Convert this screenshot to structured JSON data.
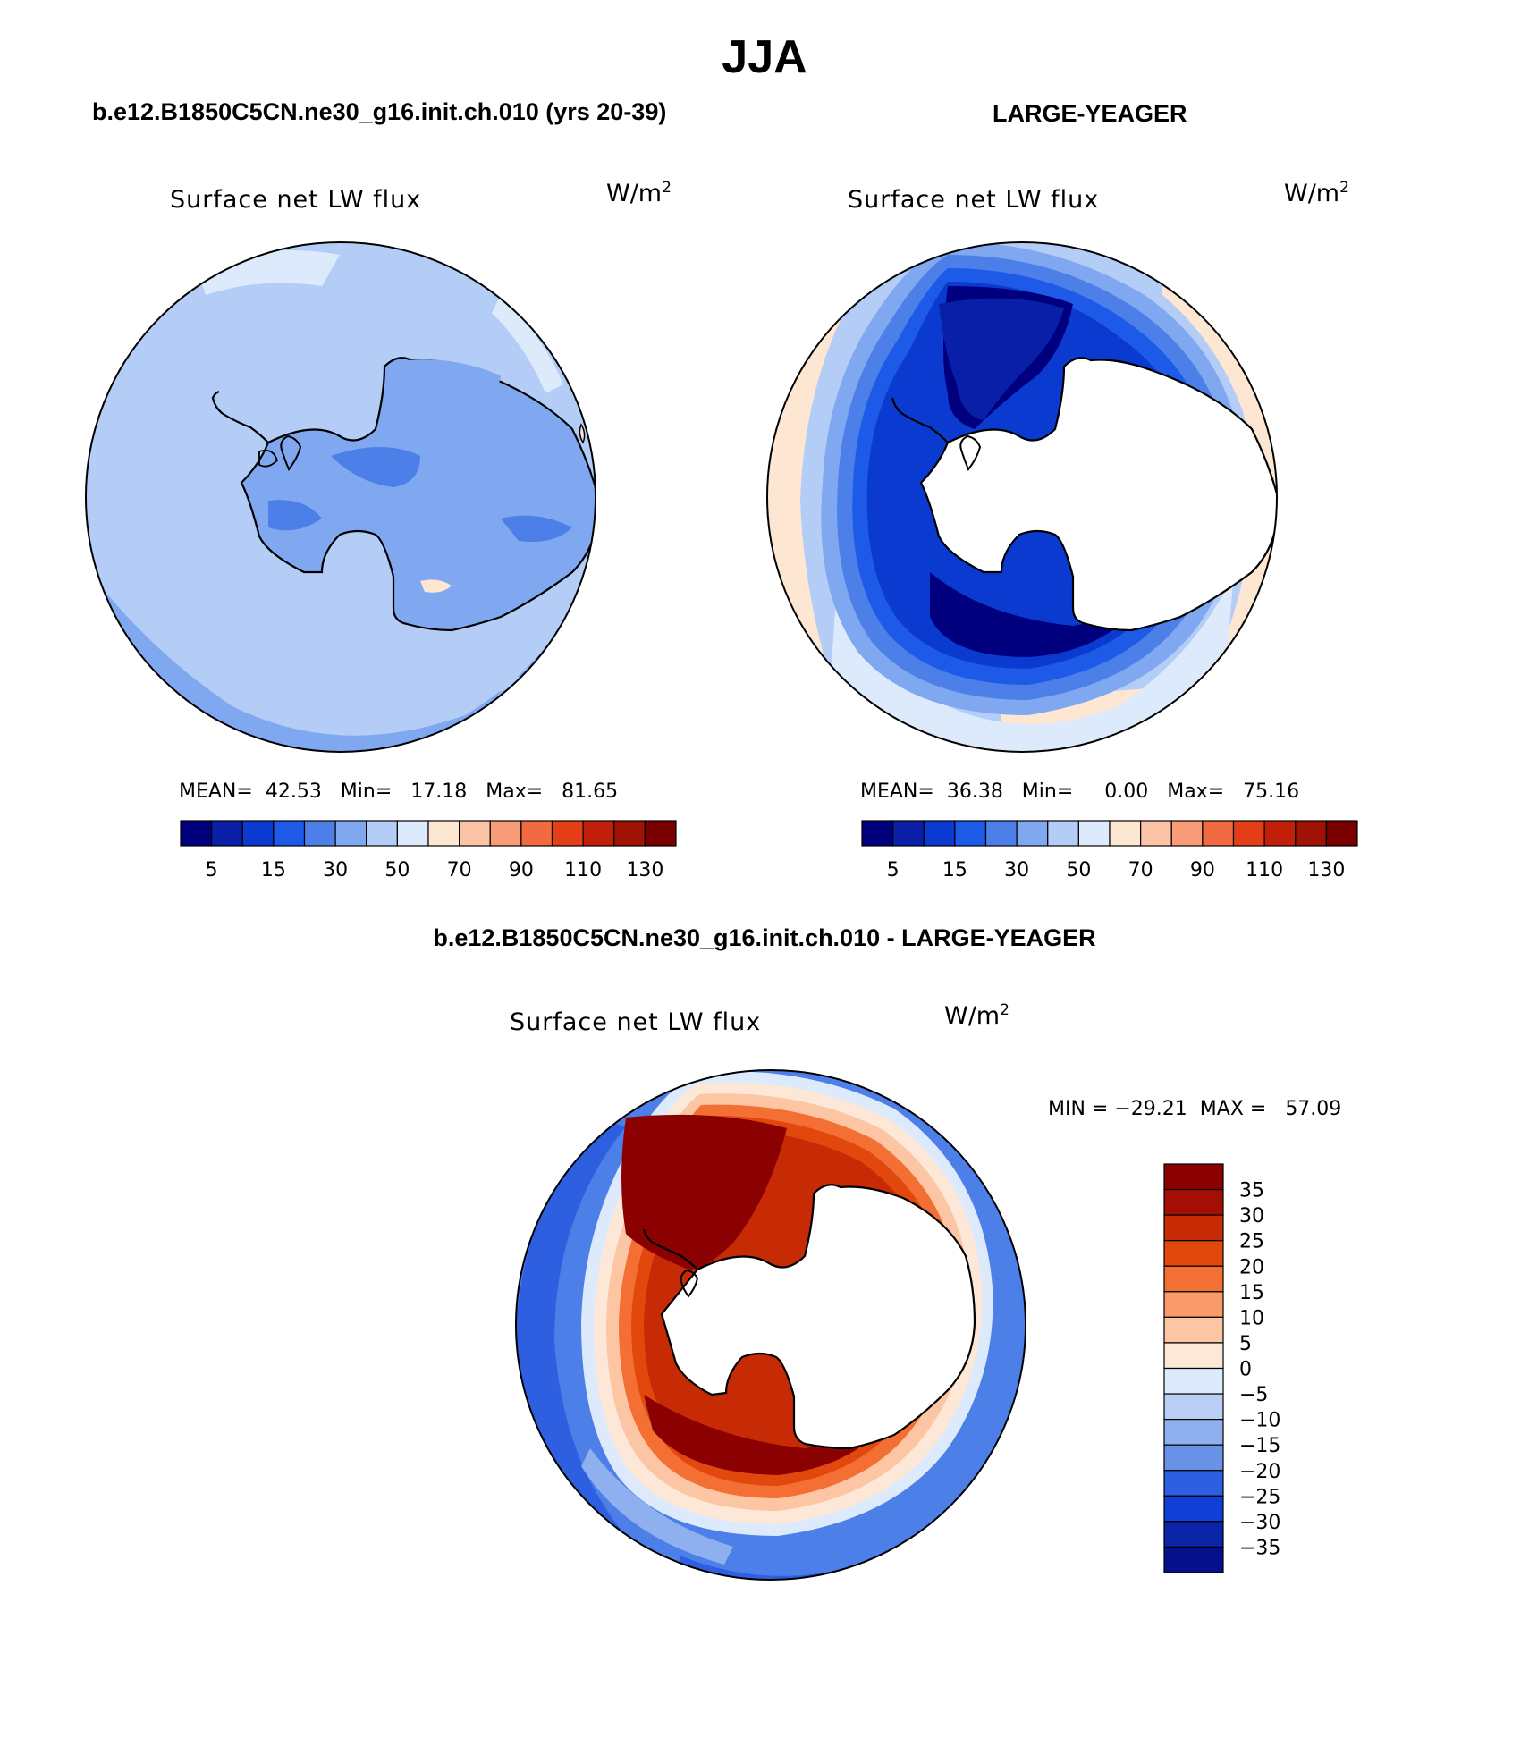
{
  "title": "JJA",
  "panels": [
    {
      "id": "model",
      "case_title": "b.e12.B1850C5CN.ne30_g16.init.ch.010 (yrs 20-39)",
      "variable": "Surface net LW flux",
      "units": "W/m",
      "units_exp": "2",
      "stats": {
        "mean_label": "MEAN=",
        "mean": "42.53",
        "min_label": "Min=",
        "min": "17.18",
        "max_label": "Max=",
        "max": "81.65"
      }
    },
    {
      "id": "obs",
      "case_title": "LARGE-YEAGER",
      "variable": "Surface net LW flux",
      "units": "W/m",
      "units_exp": "2",
      "stats": {
        "mean_label": "MEAN=",
        "mean": "36.38",
        "min_label": "Min=",
        "min": "0.00",
        "max_label": "Max=",
        "max": "75.16"
      }
    }
  ],
  "diff_panel": {
    "case_title": "b.e12.B1850C5CN.ne30_g16.init.ch.010 - LARGE-YEAGER",
    "variable": "Surface net LW flux",
    "units": "W/m",
    "units_exp": "2",
    "min_label": "MIN = ",
    "min": "−29.21",
    "max_label": "MAX = ",
    "max": "57.09"
  },
  "abs_colorbar": {
    "colors": [
      "#00007f",
      "#0a1fa8",
      "#0b3ad0",
      "#1e5ae8",
      "#4d7fe8",
      "#80a8f0",
      "#b3cdf7",
      "#dceafc",
      "#fde6d2",
      "#fbc4a6",
      "#f79c76",
      "#f26a3f",
      "#e43e16",
      "#c21f0a",
      "#a01206",
      "#7a0000"
    ],
    "tick_labels": [
      "5",
      "15",
      "30",
      "50",
      "70",
      "90",
      "110",
      "130"
    ]
  },
  "diff_colorbar": {
    "colors": [
      "#8b0000",
      "#a30f05",
      "#c62b06",
      "#e2480e",
      "#f46f33",
      "#fa9a6b",
      "#fcc5a3",
      "#fde8d8",
      "#dceafc",
      "#b8cef5",
      "#8eb0ee",
      "#6891e8",
      "#2d5fe0",
      "#0f3fd6",
      "#0a25a7",
      "#06108a"
    ],
    "tick_labels": [
      "35",
      "30",
      "25",
      "20",
      "15",
      "10",
      "5",
      "0",
      "−5",
      "−10",
      "−15",
      "−20",
      "−25",
      "−30",
      "−35"
    ]
  },
  "chart_data": [
    {
      "type": "heatmap",
      "title": "b.e12.B1850C5CN.ne30_g16.init.ch.010 (yrs 20-39)",
      "variable": "Surface net LW flux",
      "units": "W/m2",
      "season": "JJA",
      "projection": "south polar stereographic",
      "mean": 42.53,
      "min": 17.18,
      "max": 81.65,
      "levels": [
        5,
        10,
        15,
        20,
        30,
        40,
        50,
        60,
        70,
        80,
        90,
        100,
        110,
        120,
        130
      ]
    },
    {
      "type": "heatmap",
      "title": "LARGE-YEAGER",
      "variable": "Surface net LW flux",
      "units": "W/m2",
      "season": "JJA",
      "projection": "south polar stereographic",
      "mean": 36.38,
      "min": 0.0,
      "max": 75.16,
      "levels": [
        5,
        10,
        15,
        20,
        30,
        40,
        50,
        60,
        70,
        80,
        90,
        100,
        110,
        120,
        130
      ]
    },
    {
      "type": "heatmap",
      "title": "b.e12.B1850C5CN.ne30_g16.init.ch.010 - LARGE-YEAGER",
      "variable": "Surface net LW flux",
      "units": "W/m2",
      "season": "JJA",
      "projection": "south polar stereographic",
      "min": -29.21,
      "max": 57.09,
      "levels": [
        -35,
        -30,
        -25,
        -20,
        -15,
        -10,
        -5,
        0,
        5,
        10,
        15,
        20,
        25,
        30,
        35
      ]
    }
  ]
}
